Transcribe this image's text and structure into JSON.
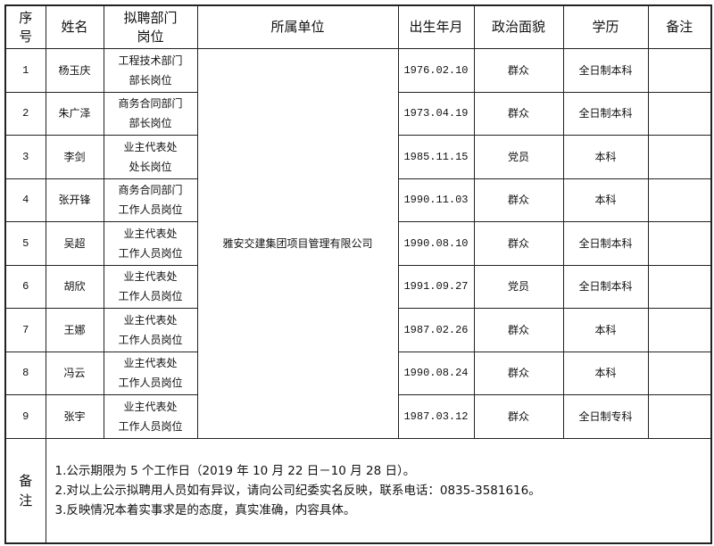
{
  "headers": {
    "no": "序号",
    "name": "姓名",
    "position": "拟聘部门岗位",
    "unit": "所属单位",
    "birth": "出生年月",
    "political": "政治面貌",
    "education": "学历",
    "remark": "备注"
  },
  "unit": "雅安交建集团项目管理有限公司",
  "rows": [
    {
      "no": "1",
      "name": "杨玉庆",
      "dept": "工程技术部门",
      "post": "部长岗位",
      "birth": "1976.02.10",
      "political": "群众",
      "education": "全日制本科",
      "remark": ""
    },
    {
      "no": "2",
      "name": "朱广泽",
      "dept": "商务合同部门",
      "post": "部长岗位",
      "birth": "1973.04.19",
      "political": "群众",
      "education": "全日制本科",
      "remark": ""
    },
    {
      "no": "3",
      "name": "李剑",
      "dept": "业主代表处",
      "post": "处长岗位",
      "birth": "1985.11.15",
      "political": "党员",
      "education": "本科",
      "remark": ""
    },
    {
      "no": "4",
      "name": "张开锋",
      "dept": "商务合同部门",
      "post": "工作人员岗位",
      "birth": "1990.11.03",
      "political": "群众",
      "education": "本科",
      "remark": ""
    },
    {
      "no": "5",
      "name": "吴超",
      "dept": "业主代表处",
      "post": "工作人员岗位",
      "birth": "1990.08.10",
      "political": "群众",
      "education": "全日制本科",
      "remark": ""
    },
    {
      "no": "6",
      "name": "胡欣",
      "dept": "业主代表处",
      "post": "工作人员岗位",
      "birth": "1991.09.27",
      "political": "党员",
      "education": "全日制本科",
      "remark": ""
    },
    {
      "no": "7",
      "name": "王娜",
      "dept": "业主代表处",
      "post": "工作人员岗位",
      "birth": "1987.02.26",
      "political": "群众",
      "education": "本科",
      "remark": ""
    },
    {
      "no": "8",
      "name": "冯云",
      "dept": "业主代表处",
      "post": "工作人员岗位",
      "birth": "1990.08.24",
      "political": "群众",
      "education": "本科",
      "remark": ""
    },
    {
      "no": "9",
      "name": "张宇",
      "dept": "业主代表处",
      "post": "工作人员岗位",
      "birth": "1987.03.12",
      "political": "群众",
      "education": "全日制专科",
      "remark": ""
    }
  ],
  "notes": {
    "label": "备注",
    "items": [
      "1.公示期限为 5 个工作日（2019 年 10 月 22 日－10 月 28 日）。",
      "2.对以上公示拟聘用人员如有异议，请向公司纪委实名反映，联系电话：0835-3581616。",
      "3.反映情况本着实事求是的态度，真实准确，内容具体。"
    ]
  }
}
